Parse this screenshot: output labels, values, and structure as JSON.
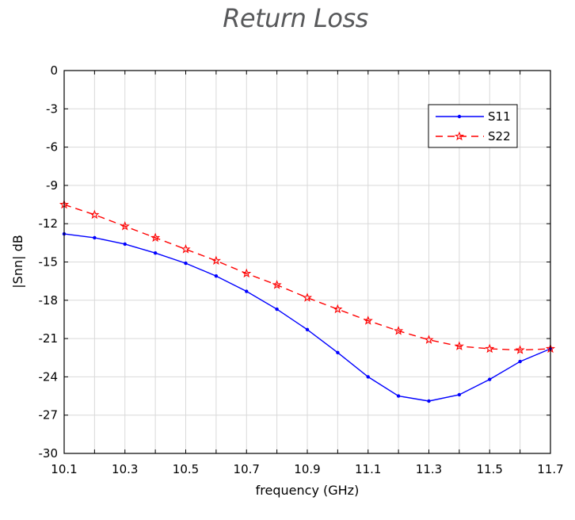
{
  "chart_data": {
    "type": "line",
    "title": "Return Loss",
    "xlabel": "frequency (GHz)",
    "ylabel": "|Snn| dB",
    "xlim": [
      10.1,
      11.7
    ],
    "ylim": [
      -30,
      0
    ],
    "xticks": [
      "10.1",
      "10.3",
      "10.5",
      "10.7",
      "10.9",
      "11.1",
      "11.3",
      "11.5",
      "11.7"
    ],
    "yticks": [
      "0",
      "-3",
      "-6",
      "-9",
      "-12",
      "-15",
      "-18",
      "-21",
      "-24",
      "-27",
      "-30"
    ],
    "grid": true,
    "legend_position": "top-right",
    "x": [
      10.1,
      10.2,
      10.3,
      10.4,
      10.5,
      10.6,
      10.7,
      10.8,
      10.9,
      11.0,
      11.1,
      11.2,
      11.3,
      11.4,
      11.5,
      11.6,
      11.7
    ],
    "series": [
      {
        "name": "S11",
        "color": "#0000ff",
        "line_style": "solid",
        "marker": "dot",
        "values": [
          -12.8,
          -13.1,
          -13.6,
          -14.3,
          -15.1,
          -16.1,
          -17.3,
          -18.7,
          -20.3,
          -22.1,
          -24.0,
          -25.5,
          -25.9,
          -25.4,
          -24.2,
          -22.8,
          -21.8
        ]
      },
      {
        "name": "S22",
        "color": "#ff0000",
        "line_style": "dashed",
        "marker": "star",
        "values": [
          -10.5,
          -11.3,
          -12.2,
          -13.1,
          -14.0,
          -14.9,
          -15.9,
          -16.8,
          -17.8,
          -18.7,
          -19.6,
          -20.4,
          -21.1,
          -21.6,
          -21.8,
          -21.9,
          -21.8
        ]
      }
    ]
  }
}
